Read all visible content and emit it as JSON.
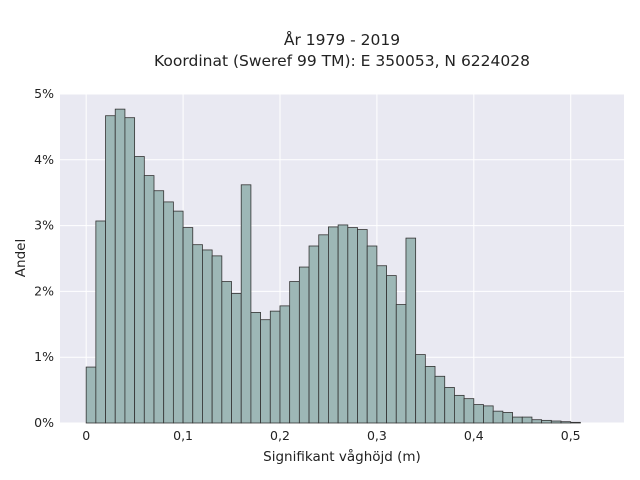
{
  "chart_data": {
    "type": "bar",
    "title": "År 1979 - 2019",
    "subtitle": "Koordinat (Sweref 99 TM): E 350053, N 6224028",
    "xlabel": "Signifikant våghöjd (m)",
    "ylabel": "Andel",
    "xlim": [
      -0.027,
      0.555
    ],
    "ylim": [
      0,
      5
    ],
    "x_ticks": [
      {
        "value": 0,
        "label": "0"
      },
      {
        "value": 0.1,
        "label": "0,1"
      },
      {
        "value": 0.2,
        "label": "0,2"
      },
      {
        "value": 0.3,
        "label": "0,3"
      },
      {
        "value": 0.4,
        "label": "0,4"
      },
      {
        "value": 0.5,
        "label": "0,5"
      }
    ],
    "y_ticks": [
      {
        "value": 0,
        "label": "0%"
      },
      {
        "value": 1,
        "label": "1%"
      },
      {
        "value": 2,
        "label": "2%"
      },
      {
        "value": 3,
        "label": "3%"
      },
      {
        "value": 4,
        "label": "4%"
      },
      {
        "value": 5,
        "label": "5%"
      }
    ],
    "bin_width": 0.01,
    "bin_starts": [
      0,
      0.01,
      0.02,
      0.03,
      0.04,
      0.05,
      0.06,
      0.07,
      0.08,
      0.09,
      0.1,
      0.11,
      0.12,
      0.13,
      0.14,
      0.15,
      0.16,
      0.17,
      0.18,
      0.19,
      0.2,
      0.21,
      0.22,
      0.23,
      0.24,
      0.25,
      0.26,
      0.27,
      0.28,
      0.29,
      0.3,
      0.31,
      0.32,
      0.33,
      0.34,
      0.35,
      0.36,
      0.37,
      0.38,
      0.39,
      0.4,
      0.41,
      0.42,
      0.43,
      0.44,
      0.45,
      0.46,
      0.47,
      0.48,
      0.49,
      0.5,
      0.51,
      0.52
    ],
    "values": [
      0.85,
      3.07,
      4.67,
      4.77,
      4.64,
      4.05,
      3.76,
      3.53,
      3.36,
      3.22,
      2.97,
      2.71,
      2.63,
      2.54,
      2.15,
      1.97,
      3.62,
      1.68,
      1.57,
      1.7,
      1.78,
      2.15,
      2.37,
      2.69,
      2.86,
      2.98,
      3.01,
      2.97,
      2.94,
      2.69,
      2.39,
      2.24,
      1.8,
      2.81,
      1.04,
      0.86,
      0.71,
      0.54,
      0.42,
      0.37,
      0.28,
      0.26,
      0.18,
      0.16,
      0.09,
      0.09,
      0.05,
      0.04,
      0.03,
      0.02,
      0.01,
      0.0,
      0.0
    ],
    "grid": true,
    "legend": "none",
    "colors": {
      "plot_background": "#e9e9f2",
      "grid": "#ffffff",
      "bar_fill": "#9db7b6",
      "bar_stroke": "#333333"
    }
  }
}
